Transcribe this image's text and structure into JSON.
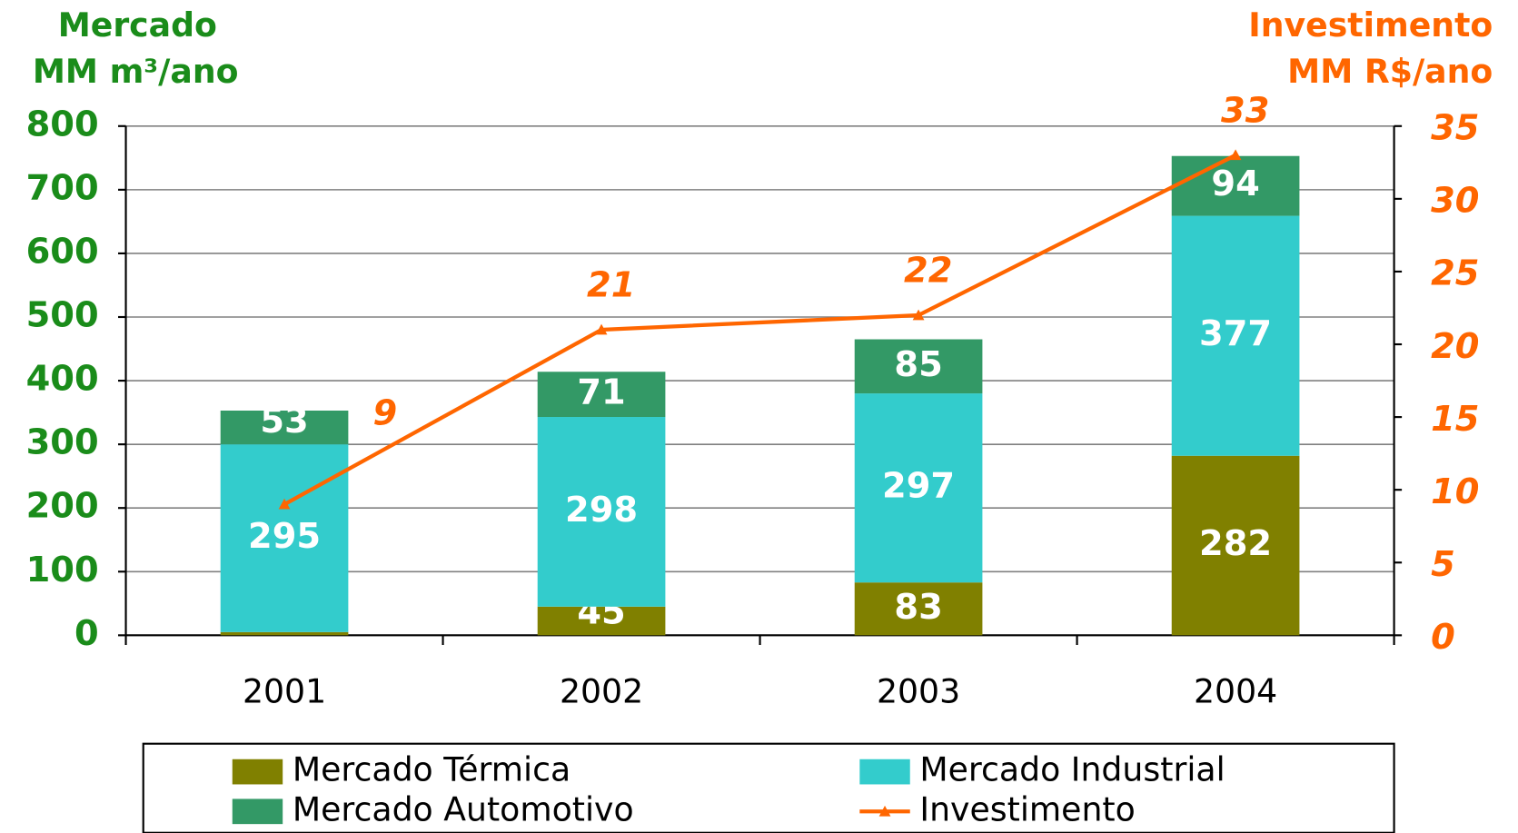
{
  "chart_data": {
    "type": "bar-line",
    "ylabel": [
      "Mercado",
      "MM m³/ano"
    ],
    "y2label": [
      "Investimento",
      "MM R$/ano"
    ],
    "categories": [
      "2001",
      "2002",
      "2003",
      "2004"
    ],
    "series": [
      {
        "name": "Mercado Térmica",
        "color": "#808000",
        "type": "bar",
        "values": [
          5,
          45,
          83,
          282
        ]
      },
      {
        "name": "Mercado Industrial",
        "color": "#33cccc",
        "type": "bar",
        "values": [
          295,
          298,
          297,
          377
        ]
      },
      {
        "name": "Mercado Automotivo",
        "color": "#339966",
        "type": "bar",
        "values": [
          53,
          71,
          85,
          94
        ]
      },
      {
        "name": "Investimento",
        "color": "#ff6600",
        "type": "line",
        "axis": "y2",
        "values": [
          9,
          21,
          22,
          33
        ]
      }
    ],
    "ylim": [
      0,
      800
    ],
    "yticks": [
      0,
      100,
      200,
      300,
      400,
      500,
      600,
      700,
      800
    ],
    "y2lim": [
      0,
      35
    ],
    "y2ticks": [
      0,
      5,
      10,
      15,
      20,
      25,
      30,
      35
    ],
    "grid": true,
    "stacked": true
  }
}
